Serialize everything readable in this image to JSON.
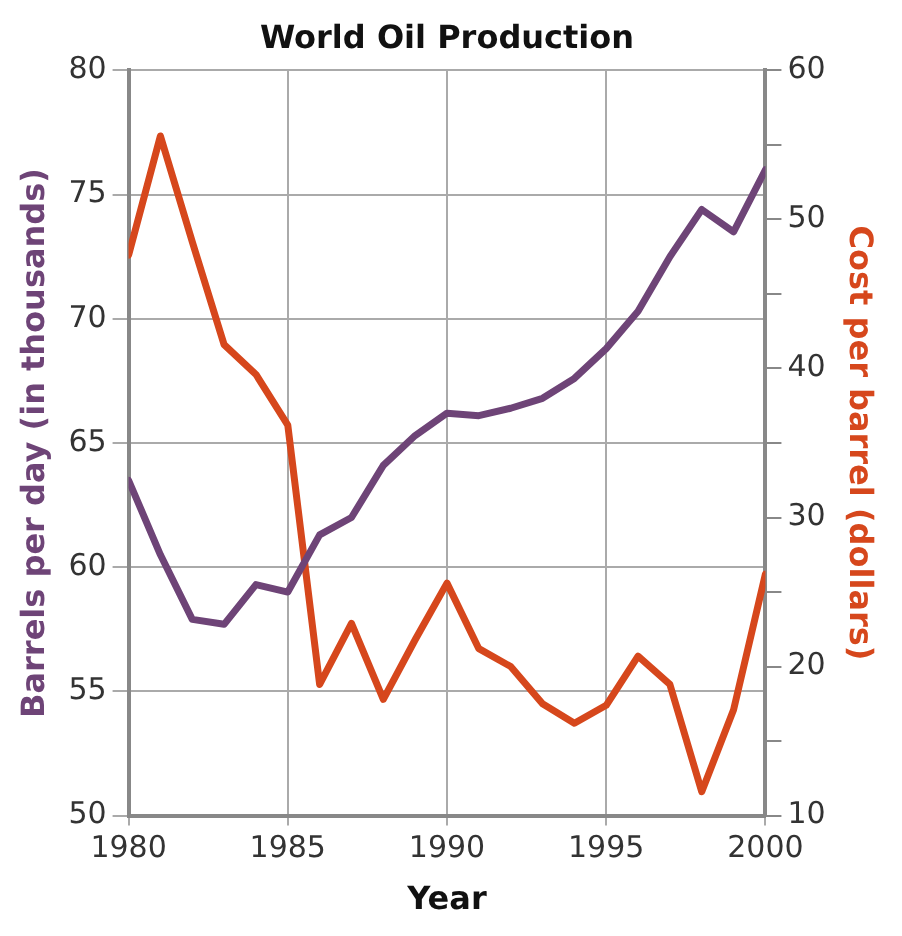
{
  "chart_data": {
    "type": "line",
    "title": "World Oil Production",
    "xlabel": "Year",
    "ylabel": "Barrels per day (in thousands)",
    "y2label": "Cost per barrel (dollars)",
    "x": [
      1980,
      1981,
      1982,
      1983,
      1984,
      1985,
      1986,
      1987,
      1988,
      1989,
      1990,
      1991,
      1992,
      1993,
      1994,
      1995,
      1996,
      1997,
      1998,
      1999,
      2000
    ],
    "series": [
      {
        "color": "#6e4477",
        "values": [
          63.5,
          60.5,
          57.9,
          57.7,
          59.3,
          59.0,
          61.3,
          62.0,
          64.1,
          65.3,
          66.2,
          66.1,
          66.4,
          66.8,
          67.6,
          68.8,
          70.3,
          72.5,
          74.4,
          73.5,
          76.0
        ]
      },
      {
        "color": "#d6471c",
        "axis": "y2",
        "values": [
          47.6,
          55.6,
          48.5,
          41.6,
          39.6,
          36.2,
          18.8,
          22.9,
          17.8,
          21.8,
          25.6,
          21.2,
          20.0,
          17.5,
          16.2,
          17.4,
          20.7,
          18.8,
          11.6,
          17.1,
          26.2
        ]
      }
    ],
    "xlim": [
      1980,
      2000
    ],
    "xticks": [
      1980,
      1985,
      1990,
      1995,
      2000
    ],
    "ylim": [
      50,
      80
    ],
    "yticks": [
      50,
      55,
      60,
      65,
      70,
      75,
      80
    ],
    "y2lim": [
      10,
      60
    ],
    "y2ticks": [
      10,
      {
        "value": 15,
        "label": null
      },
      20,
      {
        "value": 25,
        "label": null
      },
      30,
      {
        "value": 35,
        "label": null
      },
      40,
      {
        "value": 45,
        "label": null
      },
      50,
      {
        "value": 55,
        "label": null
      },
      60
    ],
    "grid": true,
    "marker": "none",
    "line_style": "solid"
  }
}
